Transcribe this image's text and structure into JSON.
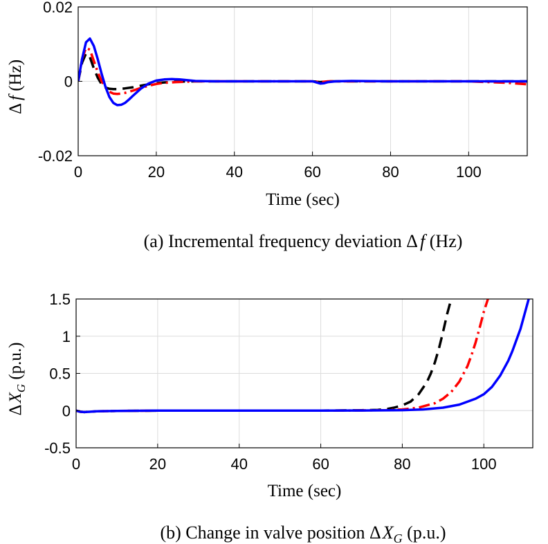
{
  "chart_data": [
    {
      "type": "line",
      "caption": {
        "prefix": "(a) Incremental frequency deviation ",
        "sym": "Δ",
        "var": "f",
        "suffix": " (Hz)"
      },
      "xlabel": "Time (sec)",
      "ylabel": {
        "sym": "Δ",
        "var": "f",
        "unit": " (Hz)"
      },
      "xlim": [
        0,
        115
      ],
      "ylim": [
        -0.02,
        0.02
      ],
      "xticks": [
        0,
        20,
        40,
        60,
        80,
        100
      ],
      "xtick_labels": [
        "0",
        "20",
        "40",
        "60",
        "80",
        "100"
      ],
      "yticks": [
        -0.02,
        0,
        0.02
      ],
      "ytick_labels": [
        "-0.02",
        "0",
        "0.02"
      ],
      "grid": true,
      "series": [
        {
          "color": "#000000",
          "dash": "dash",
          "x": [
            0,
            1,
            2,
            3,
            4,
            5,
            6,
            7,
            8,
            9,
            10,
            11,
            12,
            14,
            16,
            18,
            20,
            22,
            25,
            30,
            40,
            60,
            62,
            64,
            80,
            100,
            115
          ],
          "y": [
            0,
            0.005,
            0.0075,
            0.0065,
            0.0035,
            0.001,
            -0.0008,
            -0.0017,
            -0.002,
            -0.0021,
            -0.0021,
            -0.002,
            -0.0019,
            -0.0016,
            -0.0012,
            -0.0008,
            -0.0005,
            -0.0003,
            -0.0001,
            0,
            0,
            0,
            -0.0002,
            0,
            0,
            0,
            0
          ]
        },
        {
          "color": "#ff0000",
          "dash": "dashdot",
          "x": [
            0,
            1,
            2,
            3,
            4,
            5,
            6,
            7,
            8,
            9,
            10,
            11,
            12,
            14,
            16,
            18,
            20,
            22,
            25,
            28,
            30,
            40,
            60,
            62,
            64,
            80,
            100,
            110,
            115
          ],
          "y": [
            0,
            0.006,
            0.009,
            0.0085,
            0.0055,
            0.0025,
            0,
            -0.0017,
            -0.0028,
            -0.0033,
            -0.0034,
            -0.0033,
            -0.0031,
            -0.0025,
            -0.0018,
            -0.0012,
            -0.0007,
            -0.0004,
            -0.0002,
            -0.0001,
            0,
            0,
            0,
            -0.0002,
            0,
            0,
            0,
            -0.0004,
            -0.0008
          ]
        },
        {
          "color": "#0000ff",
          "dash": "solid",
          "x": [
            0,
            1,
            2,
            3,
            4,
            5,
            6,
            7,
            8,
            9,
            10,
            11,
            12,
            13,
            14,
            16,
            18,
            20,
            22,
            24,
            26,
            28,
            30,
            35,
            40,
            60,
            61,
            62,
            63,
            64,
            66,
            70,
            80,
            100,
            115
          ],
          "y": [
            0,
            0.006,
            0.0105,
            0.0115,
            0.0095,
            0.006,
            0.002,
            -0.0015,
            -0.0042,
            -0.0058,
            -0.0064,
            -0.0063,
            -0.0058,
            -0.0049,
            -0.0039,
            -0.002,
            -0.0006,
            0.0002,
            0.0005,
            0.0006,
            0.0005,
            0.0003,
            0.0001,
            0,
            0,
            0,
            -0.0003,
            -0.0006,
            -0.0005,
            -0.0002,
            0,
            0.0001,
            0,
            0,
            0
          ]
        }
      ]
    },
    {
      "type": "line",
      "caption": {
        "prefix": "(b) Change in valve position ",
        "sym": "Δ",
        "var": "X",
        "sub": "G",
        "suffix": " (p.u.)"
      },
      "xlabel": "Time (sec)",
      "ylabel": {
        "sym": "Δ",
        "var": "X",
        "sub": "G",
        "unit": " (p.u.)"
      },
      "xlim": [
        0,
        112
      ],
      "ylim": [
        -0.5,
        1.5
      ],
      "xticks": [
        0,
        20,
        40,
        60,
        80,
        100
      ],
      "xtick_labels": [
        "0",
        "20",
        "40",
        "60",
        "80",
        "100"
      ],
      "yticks": [
        -0.5,
        0,
        0.5,
        1,
        1.5
      ],
      "ytick_labels": [
        "-0.5",
        "0",
        "0.5",
        "1",
        "1.5"
      ],
      "grid": true,
      "series": [
        {
          "color": "#000000",
          "dash": "dash",
          "x": [
            0,
            1,
            2,
            5,
            10,
            20,
            40,
            60,
            70,
            74,
            76,
            78,
            80,
            82,
            84,
            86,
            87,
            88,
            89,
            90,
            91,
            92
          ],
          "y": [
            0,
            -0.015,
            -0.02,
            -0.01,
            -0.005,
            0,
            0,
            0,
            0.005,
            0.01,
            0.02,
            0.04,
            0.07,
            0.12,
            0.22,
            0.38,
            0.5,
            0.65,
            0.84,
            1.06,
            1.3,
            1.5
          ]
        },
        {
          "color": "#ff0000",
          "dash": "dashdot",
          "x": [
            0,
            1,
            2,
            5,
            10,
            20,
            40,
            60,
            70,
            76,
            80,
            84,
            88,
            90,
            92,
            94,
            96,
            97,
            98,
            99,
            100,
            101
          ],
          "y": [
            0,
            -0.015,
            -0.02,
            -0.01,
            -0.005,
            0,
            0,
            0,
            0.002,
            0.006,
            0.015,
            0.04,
            0.1,
            0.16,
            0.25,
            0.39,
            0.6,
            0.75,
            0.92,
            1.12,
            1.33,
            1.5
          ]
        },
        {
          "color": "#0000ff",
          "dash": "solid",
          "x": [
            0,
            1,
            2,
            5,
            10,
            20,
            40,
            60,
            70,
            80,
            85,
            90,
            94,
            98,
            100,
            102,
            104,
            106,
            107,
            108,
            109,
            110,
            111
          ],
          "y": [
            0,
            -0.015,
            -0.02,
            -0.01,
            -0.005,
            0,
            0,
            0,
            0.001,
            0.006,
            0.015,
            0.04,
            0.08,
            0.16,
            0.22,
            0.32,
            0.47,
            0.67,
            0.8,
            0.95,
            1.1,
            1.3,
            1.5
          ]
        }
      ]
    }
  ]
}
